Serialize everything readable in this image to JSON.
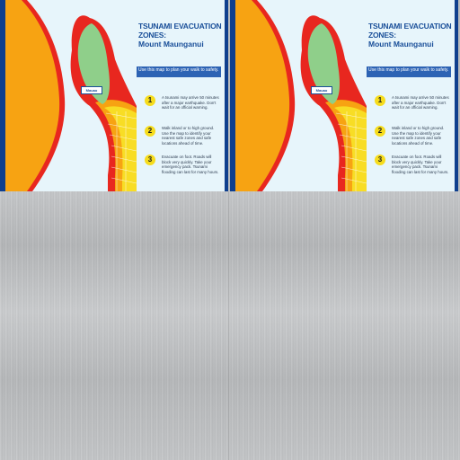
{
  "poster": {
    "title": "TSUNAMI EVACUATION ZONES:",
    "subtitle": "Mount Maunganui",
    "intro": "Use this map to plan your walk to safety.",
    "steps": [
      {
        "number": "1",
        "text": "A tsunami may arrive 50 minutes after a major earthquake. Don't wait for an official warning."
      },
      {
        "number": "2",
        "text": "Walk inland or to high ground. Use the map to identify your nearest safe zones and safe locations ahead of time."
      },
      {
        "number": "3",
        "text": "Evacuate on foot. Roads will block very quickly. Take your emergency pack. Tsunami flooding can last for many hours."
      }
    ],
    "map_label": "Mauao"
  },
  "colors": {
    "frame": "#0f3f8e",
    "sea": "#e7f5fb",
    "red_zone": "#e8271f",
    "orange_zone": "#f7a312",
    "yellow_zone": "#f8dd25",
    "green_safe": "#8fcf8a",
    "title_blue": "#1a4f99",
    "step_badge": "#f6dc1c",
    "brushed_metal": "#b9bbbd"
  }
}
